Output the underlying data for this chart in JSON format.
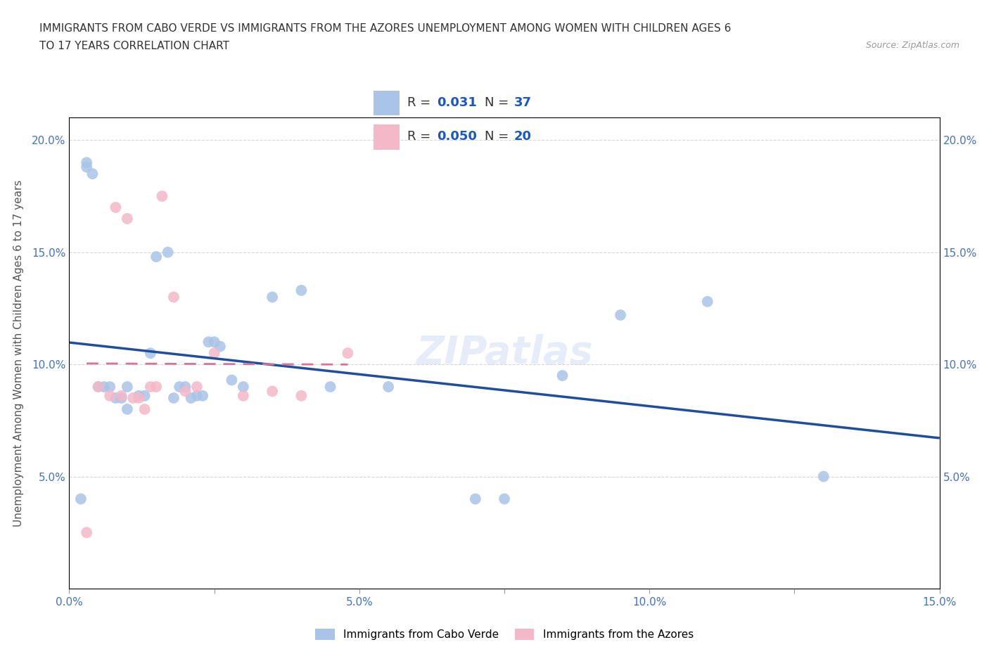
{
  "title_line1": "IMMIGRANTS FROM CABO VERDE VS IMMIGRANTS FROM THE AZORES UNEMPLOYMENT AMONG WOMEN WITH CHILDREN AGES 6",
  "title_line2": "TO 17 YEARS CORRELATION CHART",
  "source": "Source: ZipAtlas.com",
  "ylabel": "Unemployment Among Women with Children Ages 6 to 17 years",
  "xlim": [
    0.0,
    0.15
  ],
  "ylim": [
    0.0,
    0.21
  ],
  "xticks": [
    0.0,
    0.025,
    0.05,
    0.075,
    0.1,
    0.125,
    0.15
  ],
  "xtick_labels": [
    "0.0%",
    "",
    "5.0%",
    "",
    "10.0%",
    "",
    "15.0%"
  ],
  "yticks": [
    0.0,
    0.05,
    0.1,
    0.15,
    0.2
  ],
  "ytick_labels": [
    "",
    "5.0%",
    "10.0%",
    "15.0%",
    "20.0%"
  ],
  "grid_color": "#cccccc",
  "background_color": "#ffffff",
  "cabo_verde_color": "#aac4e8",
  "azores_color": "#f4b8c8",
  "cabo_verde_R": 0.031,
  "cabo_verde_N": 37,
  "azores_R": 0.05,
  "azores_N": 20,
  "cabo_verde_line_color": "#1f4e9e",
  "azores_line_color": "#e07090",
  "cabo_verde_x": [
    0.002,
    0.003,
    0.003,
    0.004,
    0.005,
    0.006,
    0.007,
    0.008,
    0.009,
    0.01,
    0.01,
    0.012,
    0.013,
    0.014,
    0.015,
    0.017,
    0.018,
    0.019,
    0.02,
    0.021,
    0.022,
    0.023,
    0.024,
    0.025,
    0.026,
    0.028,
    0.03,
    0.035,
    0.04,
    0.045,
    0.055,
    0.07,
    0.075,
    0.085,
    0.095,
    0.11,
    0.13
  ],
  "cabo_verde_y": [
    0.04,
    0.188,
    0.19,
    0.185,
    0.09,
    0.09,
    0.09,
    0.085,
    0.085,
    0.08,
    0.09,
    0.086,
    0.086,
    0.105,
    0.148,
    0.15,
    0.085,
    0.09,
    0.09,
    0.085,
    0.086,
    0.086,
    0.11,
    0.11,
    0.108,
    0.093,
    0.09,
    0.13,
    0.133,
    0.09,
    0.09,
    0.04,
    0.04,
    0.095,
    0.122,
    0.128,
    0.05
  ],
  "azores_x": [
    0.003,
    0.005,
    0.007,
    0.008,
    0.009,
    0.01,
    0.011,
    0.012,
    0.013,
    0.014,
    0.015,
    0.016,
    0.018,
    0.02,
    0.022,
    0.025,
    0.03,
    0.035,
    0.04,
    0.048
  ],
  "azores_y": [
    0.025,
    0.09,
    0.086,
    0.17,
    0.086,
    0.165,
    0.085,
    0.085,
    0.08,
    0.09,
    0.09,
    0.175,
    0.13,
    0.088,
    0.09,
    0.105,
    0.086,
    0.088,
    0.086,
    0.105
  ],
  "watermark": "ZIPatlas",
  "legend_R_color": "#1a56c4",
  "legend_text_color": "#333333"
}
